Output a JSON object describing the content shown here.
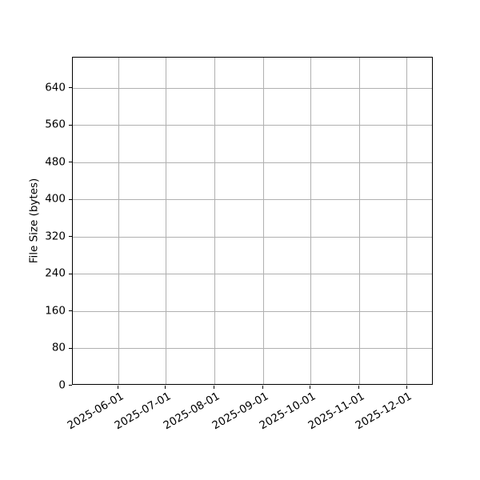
{
  "chart_data": {
    "type": "line",
    "title": "",
    "xlabel": "",
    "ylabel": "File Size (bytes)",
    "series": [],
    "x_ticks": [
      "2025-06-01",
      "2025-07-01",
      "2025-08-01",
      "2025-09-01",
      "2025-10-01",
      "2025-11-01",
      "2025-12-01"
    ],
    "y_ticks": [
      0,
      80,
      160,
      240,
      320,
      400,
      480,
      560,
      640
    ],
    "xlim": [
      "2025-05-03",
      "2025-12-18"
    ],
    "ylim": [
      0,
      706
    ],
    "grid": true,
    "legend": false,
    "x_tick_rotation_deg": 30,
    "colors": {
      "background": "#ffffff",
      "spine": "#000000",
      "grid": "#b0b0b0",
      "text": "#000000"
    }
  }
}
